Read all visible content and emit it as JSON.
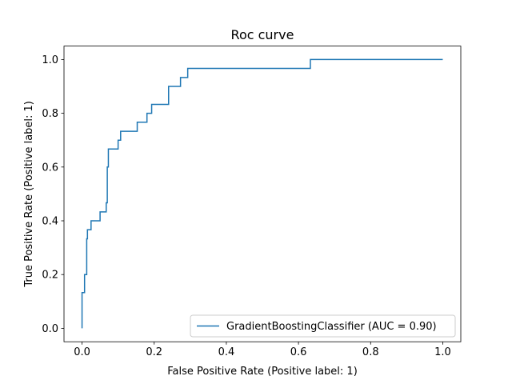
{
  "chart_data": {
    "type": "line",
    "title": "Roc curve",
    "xlabel": "False Positive Rate (Positive label: 1)",
    "ylabel": "True Positive Rate (Positive label: 1)",
    "xlim": [
      -0.05,
      1.05
    ],
    "ylim": [
      -0.05,
      1.05
    ],
    "xticks": [
      0.0,
      0.2,
      0.4,
      0.6,
      0.8,
      1.0
    ],
    "yticks": [
      0.0,
      0.2,
      0.4,
      0.6,
      0.8,
      1.0
    ],
    "xtick_labels": [
      "0.0",
      "0.2",
      "0.4",
      "0.6",
      "0.8",
      "1.0"
    ],
    "ytick_labels": [
      "0.0",
      "0.2",
      "0.4",
      "0.6",
      "0.8",
      "1.0"
    ],
    "grid": false,
    "legend_position": "lower-right",
    "series": [
      {
        "name": "GradientBoostingClassifier (AUC = 0.90)",
        "color": "#1f77b4",
        "step": true,
        "x": [
          0.0,
          0.0,
          0.0,
          0.0,
          0.007,
          0.007,
          0.013,
          0.013,
          0.015,
          0.015,
          0.02,
          0.02,
          0.025,
          0.025,
          0.05,
          0.05,
          0.067,
          0.067,
          0.07,
          0.07,
          0.073,
          0.073,
          0.078,
          0.078,
          0.1,
          0.1,
          0.107,
          0.107,
          0.153,
          0.153,
          0.18,
          0.18,
          0.193,
          0.193,
          0.24,
          0.24,
          0.273,
          0.273,
          0.293,
          0.293,
          0.633,
          0.633,
          1.0
        ],
        "y": [
          0.0,
          0.133,
          0.133,
          0.133,
          0.133,
          0.2,
          0.2,
          0.333,
          0.333,
          0.367,
          0.367,
          0.367,
          0.367,
          0.4,
          0.4,
          0.433,
          0.433,
          0.467,
          0.467,
          0.6,
          0.6,
          0.667,
          0.667,
          0.667,
          0.667,
          0.7,
          0.7,
          0.733,
          0.733,
          0.767,
          0.767,
          0.8,
          0.8,
          0.833,
          0.833,
          0.9,
          0.9,
          0.933,
          0.933,
          0.967,
          0.967,
          1.0,
          1.0
        ]
      }
    ]
  }
}
